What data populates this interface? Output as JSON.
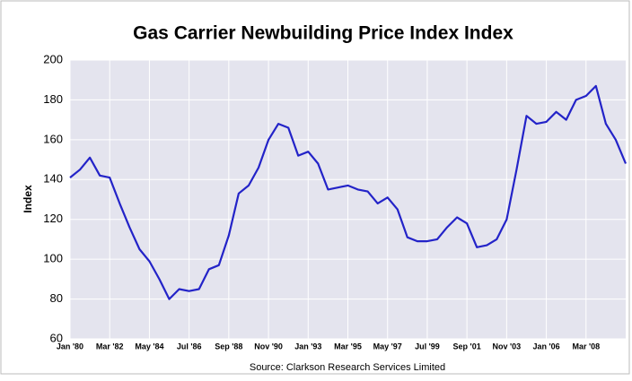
{
  "chart_data": {
    "type": "line",
    "title": "Gas Carrier Newbuilding Price Index Index",
    "y_label": "Index",
    "source": "Source: Clarkson Research Services Limited",
    "categories": [
      "Jan '80",
      null,
      null,
      null,
      "Mar '82",
      null,
      null,
      null,
      "May '84",
      null,
      null,
      null,
      "Jul '86",
      null,
      null,
      null,
      "Sep '88",
      null,
      null,
      null,
      "Nov '90",
      null,
      null,
      null,
      "Jan '93",
      null,
      null,
      null,
      "Mar '95",
      null,
      null,
      null,
      "May '97",
      null,
      null,
      null,
      "Jul '99",
      null,
      null,
      null,
      "Sep '01",
      null,
      null,
      null,
      "Nov '03",
      null,
      null,
      null,
      "Jan '06",
      null,
      null,
      null,
      "Mar '08",
      null,
      null,
      null,
      null
    ],
    "series": [
      {
        "name": "Index",
        "color": "#2323c8",
        "values": [
          141,
          145,
          151,
          142,
          141,
          128,
          116,
          105,
          99,
          90,
          80,
          85,
          84,
          85,
          95,
          97,
          112,
          133,
          137,
          146,
          160,
          168,
          166,
          152,
          154,
          148,
          135,
          136,
          137,
          135,
          134,
          128,
          131,
          125,
          111,
          109,
          109,
          110,
          116,
          121,
          118,
          106,
          107,
          110,
          120,
          145,
          172,
          168,
          169,
          174,
          170,
          180,
          182,
          187,
          168,
          160,
          148
        ]
      }
    ],
    "ylim": [
      60,
      200
    ],
    "yticks": [
      60,
      80,
      100,
      120,
      140,
      160,
      180,
      200
    ],
    "grid": true
  }
}
